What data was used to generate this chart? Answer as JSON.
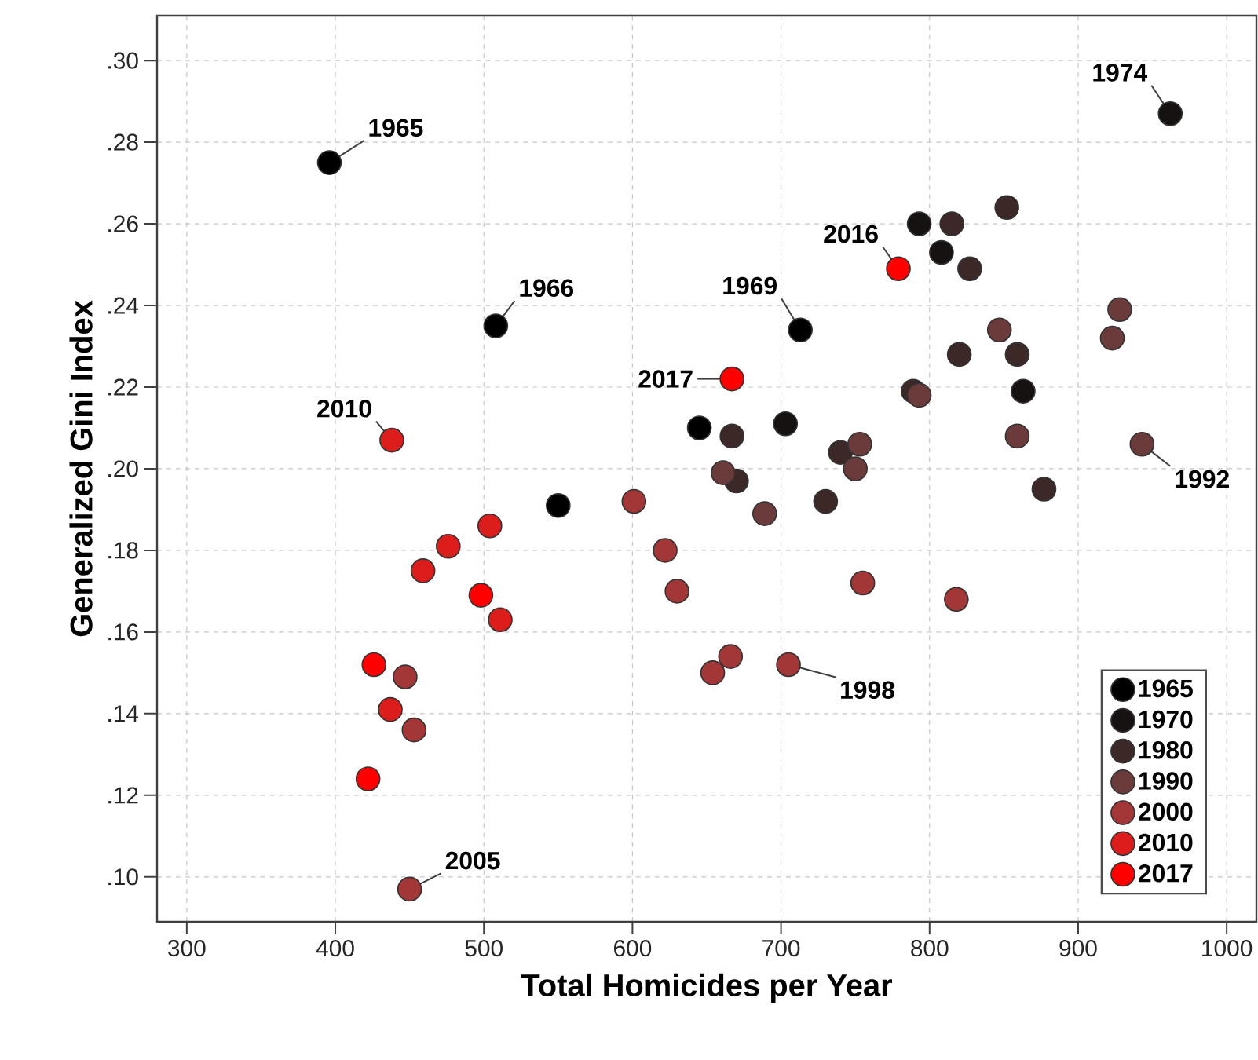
{
  "chart_data": {
    "type": "scatter",
    "xlabel": "Total Homicides per Year",
    "ylabel": "Generalized Gini Index",
    "series": [
      {
        "name": "1965",
        "color": "#000000",
        "x": [
          396,
          508,
          550,
          645,
          713
        ],
        "values": [
          0.275,
          0.235,
          0.191,
          0.21,
          0.234
        ]
      },
      {
        "name": "1970",
        "color": "#161212",
        "x": [
          703,
          793,
          808,
          863,
          962
        ],
        "values": [
          0.211,
          0.26,
          0.253,
          0.219,
          0.287
        ]
      },
      {
        "name": "1980",
        "color": "#3d2828",
        "x": [
          815,
          852,
          827,
          820,
          859,
          789,
          877,
          740,
          730,
          667,
          670
        ],
        "values": [
          0.26,
          0.264,
          0.249,
          0.228,
          0.228,
          0.219,
          0.195,
          0.204,
          0.192,
          0.208,
          0.197
        ]
      },
      {
        "name": "1990",
        "color": "#6b3a3a",
        "x": [
          661,
          689,
          753,
          750,
          847,
          928,
          943,
          923,
          859,
          793
        ],
        "values": [
          0.199,
          0.189,
          0.206,
          0.2,
          0.234,
          0.239,
          0.206,
          0.232,
          0.208,
          0.218
        ]
      },
      {
        "name": "2000",
        "color": "#a33636",
        "x": [
          818,
          755,
          705,
          666,
          654,
          601,
          622,
          630,
          453,
          450,
          447
        ],
        "values": [
          0.168,
          0.172,
          0.152,
          0.154,
          0.15,
          0.192,
          0.18,
          0.17,
          0.136,
          0.097,
          0.149
        ]
      },
      {
        "name": "2010",
        "color": "#dd1c1c",
        "x": [
          476,
          459,
          511,
          438,
          504,
          437
        ],
        "values": [
          0.181,
          0.175,
          0.163,
          0.207,
          0.186,
          0.141
        ]
      },
      {
        "name": "2017",
        "color": "#ff0000",
        "x": [
          426,
          498,
          422,
          779,
          667
        ],
        "values": [
          0.152,
          0.169,
          0.124,
          0.249,
          0.222
        ]
      }
    ],
    "grid": true,
    "legend": "bottom right",
    "xlim": [
      280,
      1020
    ],
    "xticks": [
      300,
      400,
      500,
      600,
      700,
      800,
      900,
      1000
    ],
    "ylim": [
      0.089,
      0.311
    ],
    "yticks": [
      {
        "value": 0.1,
        "label": ".10"
      },
      {
        "value": 0.12,
        "label": ".12"
      },
      {
        "value": 0.14,
        "label": ".14"
      },
      {
        "value": 0.16,
        "label": ".16"
      },
      {
        "value": 0.18,
        "label": ".18"
      },
      {
        "value": 0.2,
        "label": ".20"
      },
      {
        "value": 0.22,
        "label": ".22"
      },
      {
        "value": 0.24,
        "label": ".24"
      },
      {
        "value": 0.26,
        "label": ".26"
      },
      {
        "value": 0.28,
        "label": ".28"
      },
      {
        "value": 0.3,
        "label": ".30"
      }
    ],
    "annotations": [
      {
        "text": "1965",
        "x": 396,
        "y": 0.275
      },
      {
        "text": "1966",
        "x": 508,
        "y": 0.235
      },
      {
        "text": "1969",
        "x": 713,
        "y": 0.234
      },
      {
        "text": "1974",
        "x": 962,
        "y": 0.287
      },
      {
        "text": "1992",
        "x": 943,
        "y": 0.206
      },
      {
        "text": "1998",
        "x": 705,
        "y": 0.152
      },
      {
        "text": "2005",
        "x": 450,
        "y": 0.097
      },
      {
        "text": "2010",
        "x": 438,
        "y": 0.207
      },
      {
        "text": "2016",
        "x": 779,
        "y": 0.249
      },
      {
        "text": "2017",
        "x": 667,
        "y": 0.222
      }
    ]
  }
}
